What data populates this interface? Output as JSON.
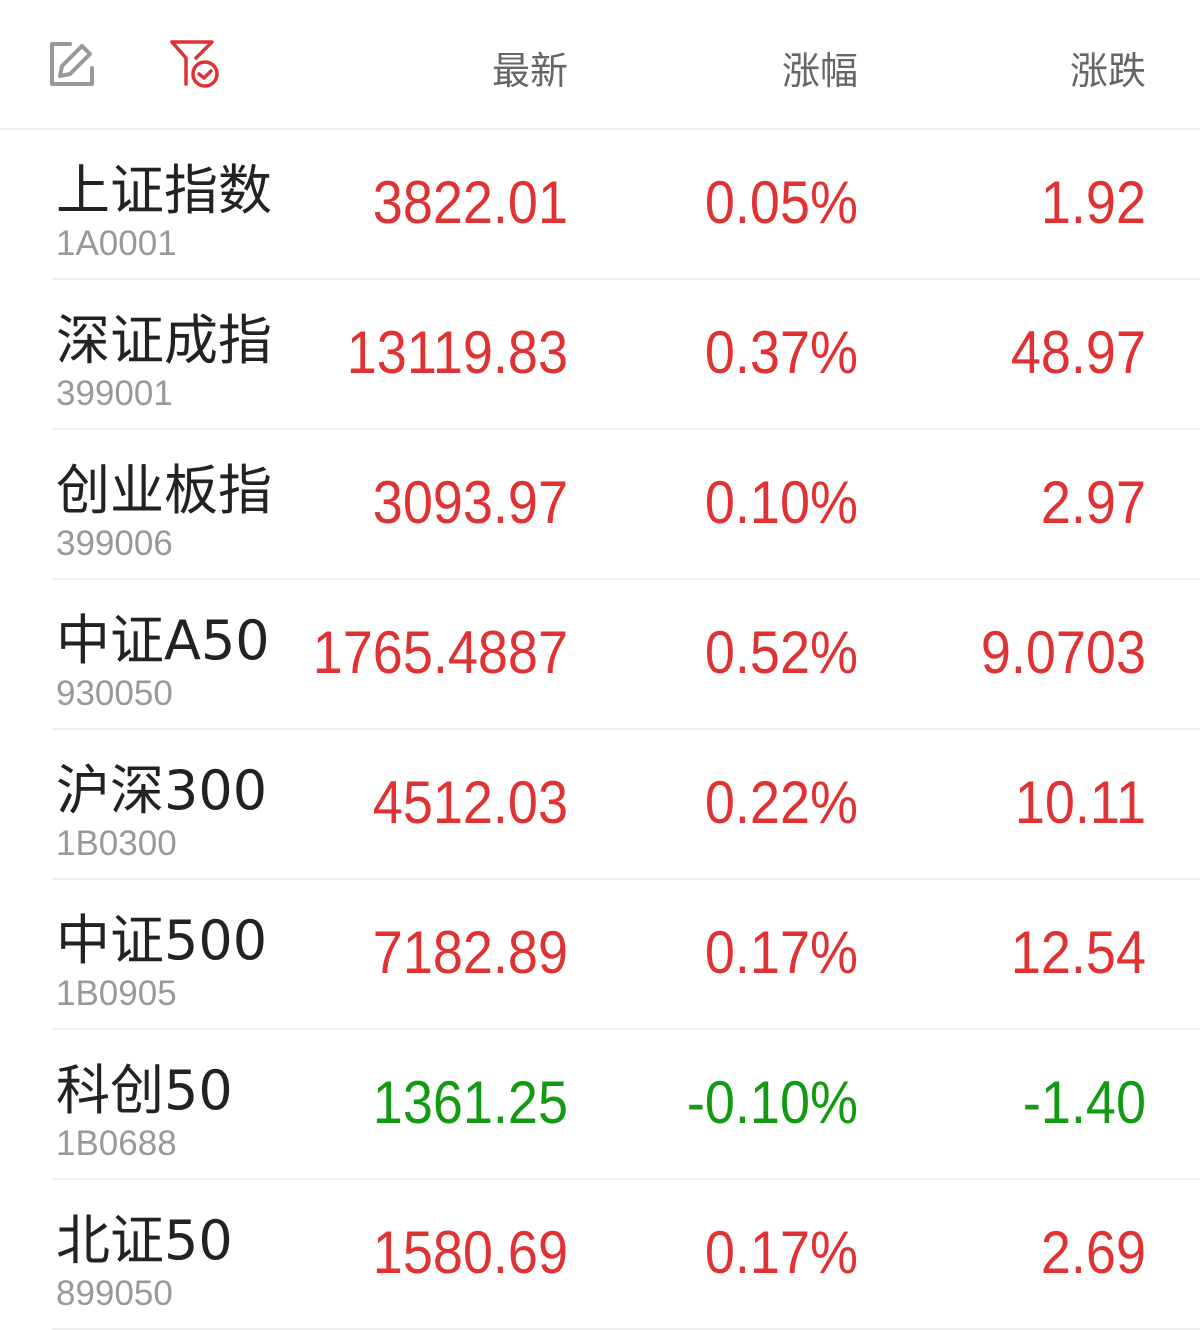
{
  "colors": {
    "up": "#e03232",
    "down": "#139a13",
    "header_text": "#666666",
    "code": "#999999"
  },
  "header": {
    "edit_icon": "edit-icon",
    "filter_icon": "filter-check-icon",
    "columns": [
      "最新",
      "涨幅",
      "涨跌"
    ]
  },
  "rows": [
    {
      "name": "上证指数",
      "code": "1A0001",
      "last": "3822.01",
      "pct": "0.05%",
      "chg": "1.92",
      "dir": "up"
    },
    {
      "name": "深证成指",
      "code": "399001",
      "last": "13119.83",
      "pct": "0.37%",
      "chg": "48.97",
      "dir": "up"
    },
    {
      "name": "创业板指",
      "code": "399006",
      "last": "3093.97",
      "pct": "0.10%",
      "chg": "2.97",
      "dir": "up"
    },
    {
      "name": "中证A50",
      "code": "930050",
      "last": "1765.4887",
      "pct": "0.52%",
      "chg": "9.0703",
      "dir": "up"
    },
    {
      "name": "沪深300",
      "code": "1B0300",
      "last": "4512.03",
      "pct": "0.22%",
      "chg": "10.11",
      "dir": "up"
    },
    {
      "name": "中证500",
      "code": "1B0905",
      "last": "7182.89",
      "pct": "0.17%",
      "chg": "12.54",
      "dir": "up"
    },
    {
      "name": "科创50",
      "code": "1B0688",
      "last": "1361.25",
      "pct": "-0.10%",
      "chg": "-1.40",
      "dir": "down"
    },
    {
      "name": "北证50",
      "code": "899050",
      "last": "1580.69",
      "pct": "0.17%",
      "chg": "2.69",
      "dir": "up"
    }
  ]
}
